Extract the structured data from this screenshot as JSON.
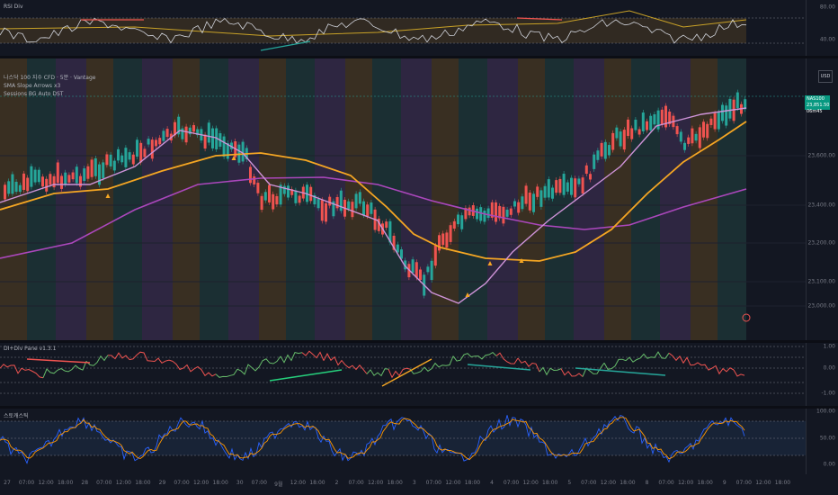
{
  "rsi_pane": {
    "title": "RSI Div",
    "ticks": [
      "80.00",
      "40.00"
    ]
  },
  "main_pane": {
    "title": "나스닥 100 지수 CFD · 5분 · Vantage",
    "indicators": [
      "SMA Slope Arrows x3",
      "Sessions BG Auto DST"
    ],
    "symbol": "USD",
    "last_price": "23,851.50",
    "countdown": "06m45",
    "price_tag_symbol": "NAS100",
    "ticks": [
      "23,600.00",
      "23,400.00",
      "23,200.00",
      "23,100.00",
      "23,000.00"
    ]
  },
  "oscillator_pane": {
    "title": "DI+Div Pane v1.3.1",
    "ticks": [
      "1.00",
      "0.00",
      "-1.00"
    ]
  },
  "stoch_pane": {
    "title": "스토캐스틱",
    "ticks": [
      "100.00",
      "50.00",
      "0.00"
    ]
  },
  "x_axis": [
    "27",
    "07:00",
    "12:00",
    "18:00",
    "28",
    "07:00",
    "12:00",
    "18:00",
    "29",
    "07:00",
    "12:00",
    "18:00",
    "30",
    "07:00",
    "9월",
    "12:00",
    "18:00",
    "2",
    "07:00",
    "12:00",
    "18:00",
    "3",
    "07:00",
    "12:00",
    "18:00",
    "4",
    "07:00",
    "12:00",
    "18:00",
    "5",
    "07:00",
    "12:00",
    "18:00",
    "8",
    "07:00",
    "12:00",
    "18:00",
    "9",
    "07:00",
    "12:00",
    "18:00"
  ],
  "colors": {
    "background": "#131722",
    "up_candle": "#26a69a",
    "down_candle": "#ef5350",
    "sma_fast": "#ce93d8",
    "sma_slow": "#f5a623",
    "sma_long": "#ab47bc",
    "session_asia": "#3a2d4f",
    "session_europe": "#1f3a3a",
    "session_us": "#4a3a22"
  }
}
